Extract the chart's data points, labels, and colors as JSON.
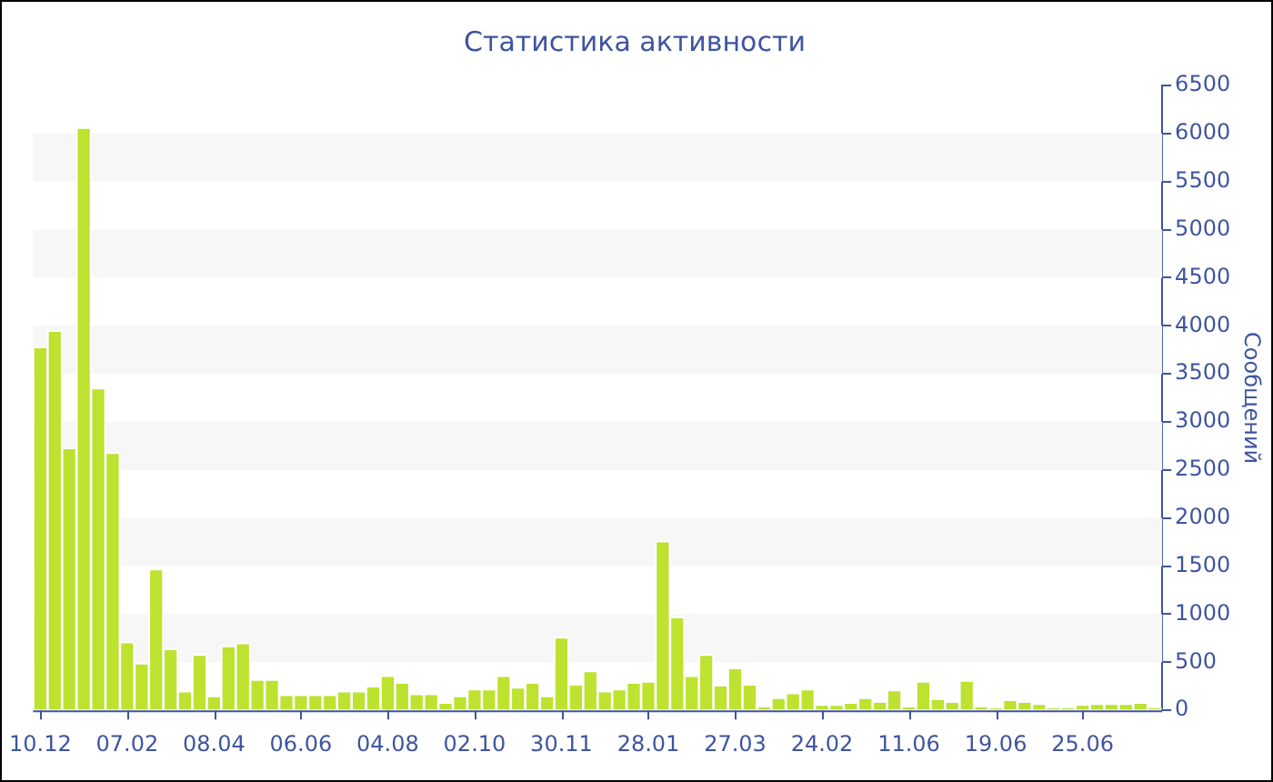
{
  "chart_data": {
    "type": "bar",
    "title": "Статистика активности",
    "ylabel": "Сообщений",
    "categories": [
      "10.12",
      null,
      null,
      null,
      null,
      null,
      "07.02",
      null,
      null,
      null,
      null,
      null,
      "08.04",
      null,
      null,
      null,
      null,
      null,
      "06.06",
      null,
      null,
      null,
      null,
      null,
      "04.08",
      null,
      null,
      null,
      null,
      null,
      "02.10",
      null,
      null,
      null,
      null,
      null,
      "30.11",
      null,
      null,
      null,
      null,
      null,
      "28.01",
      null,
      null,
      null,
      null,
      null,
      "27.03",
      null,
      null,
      null,
      null,
      null,
      "24.02",
      null,
      null,
      null,
      null,
      null,
      "11.06",
      null,
      null,
      null,
      null,
      null,
      "19.06",
      null,
      null,
      null,
      null,
      null,
      "25.06",
      null,
      null,
      null,
      null,
      null
    ],
    "values": [
      3780,
      3950,
      2730,
      6060,
      3350,
      2680,
      710,
      490,
      1470,
      640,
      200,
      580,
      150,
      670,
      700,
      320,
      320,
      160,
      160,
      160,
      160,
      200,
      200,
      250,
      360,
      290,
      170,
      170,
      80,
      150,
      220,
      220,
      360,
      240,
      290,
      150,
      760,
      270,
      410,
      200,
      220,
      290,
      300,
      1760,
      970,
      360,
      580,
      260,
      440,
      270,
      40,
      130,
      180,
      220,
      60,
      60,
      80,
      130,
      90,
      210,
      40,
      300,
      120,
      90,
      310,
      40,
      20,
      110,
      90,
      70,
      20,
      20,
      60,
      70,
      70,
      70,
      80,
      20
    ],
    "color": "#bde22f",
    "ylim": [
      0,
      6500
    ],
    "yticks": [
      0,
      500,
      1000,
      1500,
      2000,
      2500,
      3000,
      3500,
      4000,
      4500,
      5000,
      5500,
      6000,
      6500
    ],
    "bands": [
      {
        "axis": "y",
        "from": 500,
        "to": 1000,
        "color": "#f7f7f7"
      },
      {
        "axis": "y",
        "from": 1500,
        "to": 2000,
        "color": "#f7f7f7"
      },
      {
        "axis": "y",
        "from": 2500,
        "to": 3000,
        "color": "#f7f7f7"
      },
      {
        "axis": "y",
        "from": 3500,
        "to": 4000,
        "color": "#f7f7f7"
      },
      {
        "axis": "y",
        "from": 4500,
        "to": 5000,
        "color": "#f7f7f7"
      },
      {
        "axis": "y",
        "from": 5500,
        "to": 6000,
        "color": "#f7f7f7"
      }
    ]
  }
}
